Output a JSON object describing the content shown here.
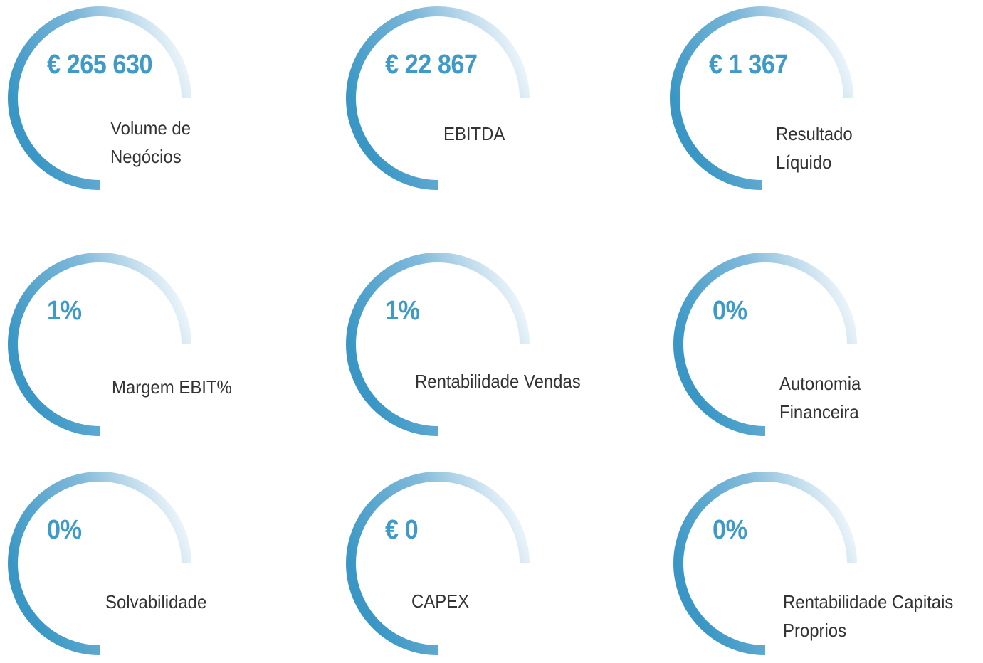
{
  "kpis": [
    {
      "value": "€ 265 630",
      "label": "Volume de Negócios"
    },
    {
      "value": "€ 22 867",
      "label": "EBITDA"
    },
    {
      "value": "€ 1 367",
      "label": "Resultado Líquido"
    },
    {
      "value": "1%",
      "label": "Margem EBIT%"
    },
    {
      "value": "1%",
      "label": "Rentabilidade Vendas"
    },
    {
      "value": "0%",
      "label": "Autonomia Financeira"
    },
    {
      "value": "0%",
      "label": "Solvabilidade"
    },
    {
      "value": "€ 0",
      "label": "CAPEX"
    },
    {
      "value": "0%",
      "label": "Rentabilidade Capitais Proprios"
    }
  ]
}
